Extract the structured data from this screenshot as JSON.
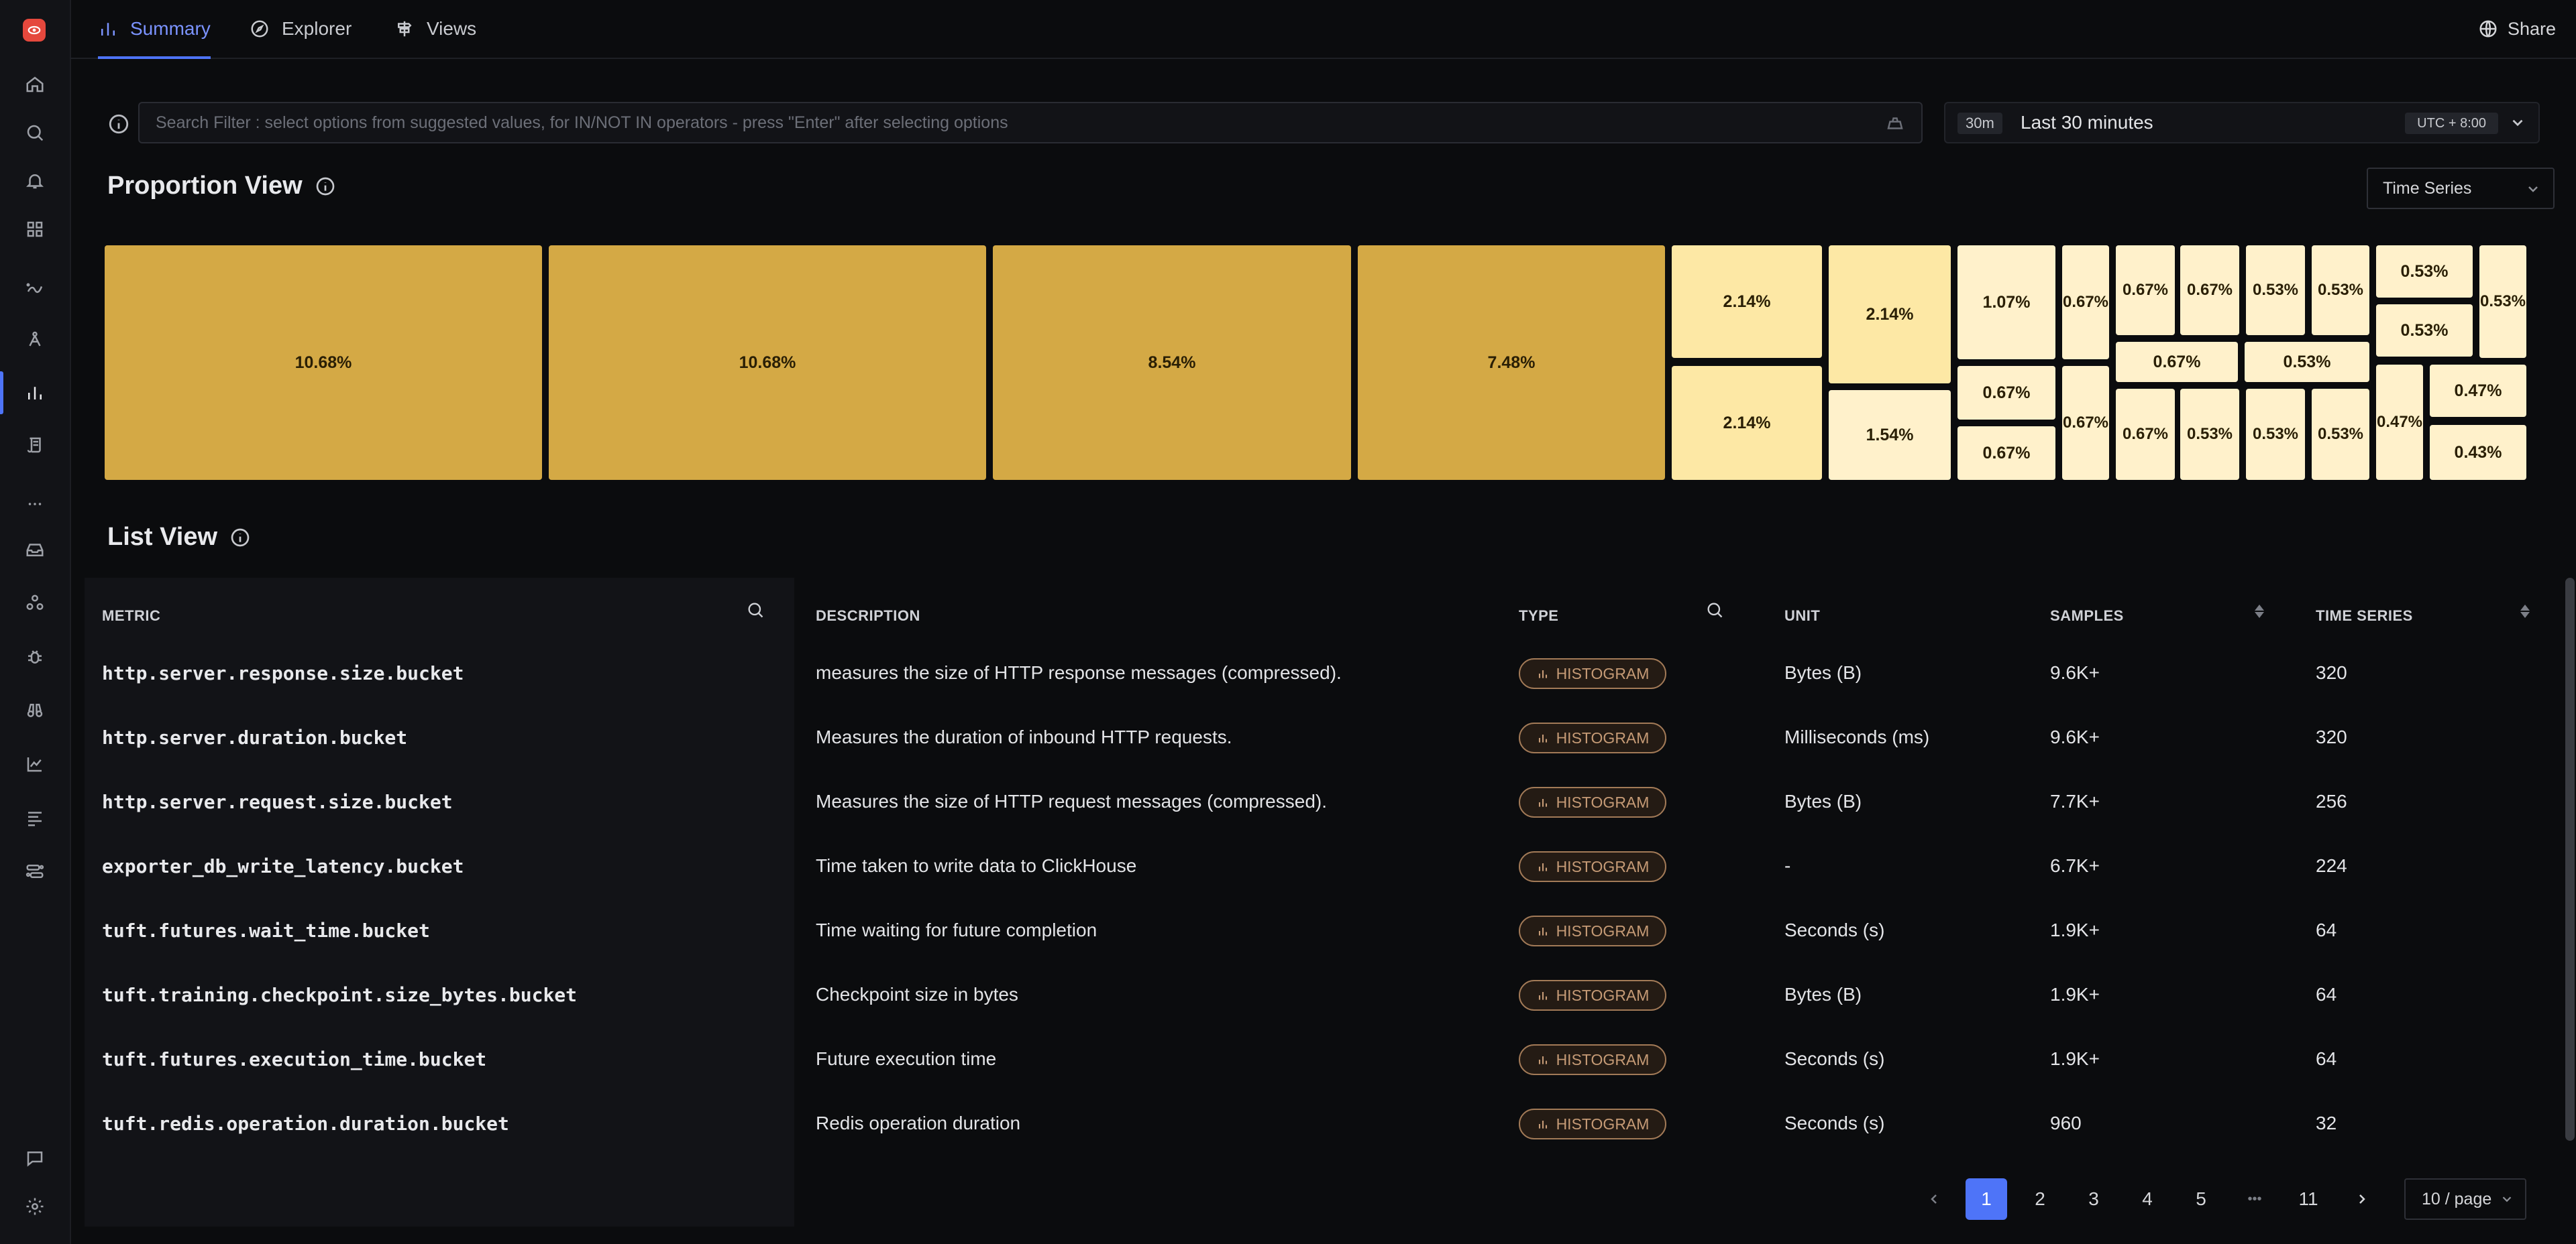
{
  "tabs": [
    {
      "label": "Summary",
      "icon": "bar-chart-icon"
    },
    {
      "label": "Explorer",
      "icon": "compass-icon"
    },
    {
      "label": "Views",
      "icon": "signpost-icon"
    }
  ],
  "share_label": "Share",
  "search": {
    "placeholder": "Search Filter : select options from suggested values, for IN/NOT IN operators - press \"Enter\" after selecting options"
  },
  "time": {
    "badge": "30m",
    "label": "Last 30 minutes",
    "timezone": "UTC + 8:00"
  },
  "proportion": {
    "title": "Proportion View",
    "view_select": "Time Series",
    "tiles": [
      "10.68%",
      "10.68%",
      "8.54%",
      "7.48%",
      "2.14%",
      "2.14%",
      "2.14%",
      "1.54%",
      "1.07%",
      "0.67%",
      "0.67%",
      "0.67%",
      "0.67%",
      "0.67%",
      "0.53%",
      "0.53%",
      "0.53%",
      "0.53%",
      "0.67%",
      "0.67%",
      "0.67%",
      "0.53%",
      "0.53%",
      "0.53%",
      "0.53%",
      "0.53%",
      "0.47%",
      "0.47%",
      "0.43%"
    ]
  },
  "list": {
    "title": "List View",
    "columns": {
      "metric": "METRIC",
      "description": "DESCRIPTION",
      "type": "TYPE",
      "unit": "UNIT",
      "samples": "SAMPLES",
      "time_series": "TIME SERIES"
    },
    "rows": [
      {
        "metric": "http.server.response.size.bucket",
        "description": "measures the size of HTTP response messages (compressed).",
        "type": "HISTOGRAM",
        "unit": "Bytes (B)",
        "samples": "9.6K+",
        "time_series": "320"
      },
      {
        "metric": "http.server.duration.bucket",
        "description": "Measures the duration of inbound HTTP requests.",
        "type": "HISTOGRAM",
        "unit": "Milliseconds (ms)",
        "samples": "9.6K+",
        "time_series": "320"
      },
      {
        "metric": "http.server.request.size.bucket",
        "description": "Measures the size of HTTP request messages (compressed).",
        "type": "HISTOGRAM",
        "unit": "Bytes (B)",
        "samples": "7.7K+",
        "time_series": "256"
      },
      {
        "metric": "exporter_db_write_latency.bucket",
        "description": "Time taken to write data to ClickHouse",
        "type": "HISTOGRAM",
        "unit": "-",
        "samples": "6.7K+",
        "time_series": "224"
      },
      {
        "metric": "tuft.futures.wait_time.bucket",
        "description": "Time waiting for future completion",
        "type": "HISTOGRAM",
        "unit": "Seconds (s)",
        "samples": "1.9K+",
        "time_series": "64"
      },
      {
        "metric": "tuft.training.checkpoint.size_bytes.bucket",
        "description": "Checkpoint size in bytes",
        "type": "HISTOGRAM",
        "unit": "Bytes (B)",
        "samples": "1.9K+",
        "time_series": "64"
      },
      {
        "metric": "tuft.futures.execution_time.bucket",
        "description": "Future execution time",
        "type": "HISTOGRAM",
        "unit": "Seconds (s)",
        "samples": "1.9K+",
        "time_series": "64"
      },
      {
        "metric": "tuft.redis.operation.duration.bucket",
        "description": "Redis operation duration",
        "type": "HISTOGRAM",
        "unit": "Seconds (s)",
        "samples": "960",
        "time_series": "32"
      }
    ]
  },
  "pagination": {
    "pages": [
      "1",
      "2",
      "3",
      "4",
      "5",
      "•••",
      "11"
    ],
    "current": "1",
    "per_page": "10 / page"
  }
}
